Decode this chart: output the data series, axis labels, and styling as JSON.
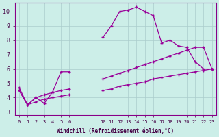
{
  "xlabel": "Windchill (Refroidissement éolien,°C)",
  "bg_color": "#cceee8",
  "line_color": "#990099",
  "grid_color": "#aacccc",
  "xlim": [
    -0.5,
    23.5
  ],
  "ylim": [
    2.8,
    10.6
  ],
  "yticks": [
    3,
    4,
    5,
    6,
    7,
    8,
    9,
    10
  ],
  "xticks": [
    0,
    1,
    2,
    3,
    4,
    5,
    6,
    10,
    11,
    12,
    13,
    14,
    15,
    16,
    17,
    18,
    19,
    20,
    21,
    22,
    23
  ],
  "seg1_x": [
    0,
    1,
    2,
    3,
    4,
    5,
    6
  ],
  "seg2_x": [
    10,
    11,
    12,
    13,
    14,
    15,
    16,
    17,
    18,
    19,
    20,
    21,
    22,
    23
  ],
  "line1_seg1": [
    4.7,
    3.5,
    4.0,
    3.6,
    4.4,
    5.8,
    5.8
  ],
  "line1_seg2": [
    8.2,
    9.0,
    10.0,
    10.1,
    10.3,
    10.0,
    9.7,
    7.8,
    8.0,
    7.6,
    7.5,
    6.5,
    6.0,
    6.0
  ],
  "line2_seg1": [
    4.5,
    3.5,
    4.0,
    4.2,
    4.35,
    4.5,
    4.6
  ],
  "line2_seg2": [
    5.3,
    5.5,
    5.7,
    5.9,
    6.1,
    6.3,
    6.5,
    6.7,
    6.9,
    7.1,
    7.3,
    7.5,
    7.5,
    6.0
  ],
  "line3_seg1": [
    4.5,
    3.5,
    3.7,
    3.9,
    4.0,
    4.1,
    4.2
  ],
  "line3_seg2": [
    4.5,
    4.6,
    4.8,
    4.9,
    5.0,
    5.1,
    5.3,
    5.4,
    5.5,
    5.6,
    5.7,
    5.8,
    5.9,
    6.0
  ]
}
